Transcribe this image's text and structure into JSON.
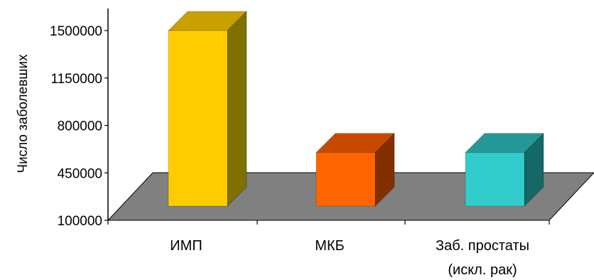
{
  "chart_data": {
    "type": "bar",
    "style": "3d",
    "ylabel": "Число заболевших",
    "xlabel": "",
    "ylim": [
      100000,
      1500000
    ],
    "yticks": [
      "1500000",
      "1150000",
      "800000",
      "450000",
      "100000"
    ],
    "ytick_values": [
      1500000,
      1150000,
      800000,
      450000,
      100000
    ],
    "categories": [
      [
        "ИМП"
      ],
      [
        "МКБ"
      ],
      [
        "Заб. простаты",
        "(искл. рак)"
      ]
    ],
    "values": [
      1500000,
      600000,
      600000
    ],
    "colors": [
      {
        "front": "#ffcc00",
        "top": "#c8a000",
        "side": "#807000"
      },
      {
        "front": "#ff6600",
        "top": "#c84800",
        "side": "#823000"
      },
      {
        "front": "#33cccc",
        "top": "#249898",
        "side": "#146868"
      }
    ],
    "floor_color": "#808080",
    "grid": false
  }
}
